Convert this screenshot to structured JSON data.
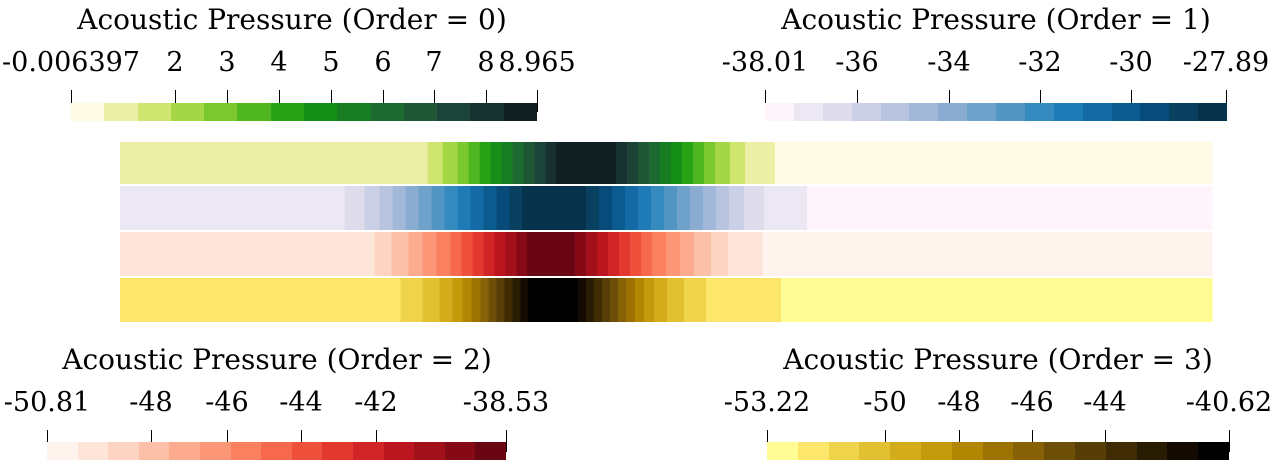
{
  "legends": [
    {
      "id": "order0",
      "title": "Acoustic Pressure (Order = 0)",
      "range": [
        -0.006397,
        8.965
      ],
      "ticks": [
        {
          "label": "-0.006397",
          "value": -0.006397
        },
        {
          "label": "2",
          "value": 2
        },
        {
          "label": "3",
          "value": 3
        },
        {
          "label": "4",
          "value": 4
        },
        {
          "label": "5",
          "value": 5
        },
        {
          "label": "6",
          "value": 6
        },
        {
          "label": "7",
          "value": 7
        },
        {
          "label": "8",
          "value": 8
        },
        {
          "label": "8.965",
          "value": 8.965
        }
      ],
      "colors": [
        "#fffbe4",
        "#ecf0a6",
        "#d0e470",
        "#a5d645",
        "#7bc72e",
        "#4fb520",
        "#29a316",
        "#168f18",
        "#167d23",
        "#1d6a30",
        "#1e5636",
        "#1c4337",
        "#173030",
        "#121f22"
      ]
    },
    {
      "id": "order1",
      "title": "Acoustic Pressure (Order = 1)",
      "range": [
        -38.01,
        -27.89
      ],
      "ticks": [
        {
          "label": "-38.01",
          "value": -38.01
        },
        {
          "label": "-36",
          "value": -36
        },
        {
          "label": "-34",
          "value": -34
        },
        {
          "label": "-32",
          "value": -32
        },
        {
          "label": "-30",
          "value": -30
        },
        {
          "label": "-27.89",
          "value": -27.89
        }
      ],
      "colors": [
        "#fdf5fb",
        "#ece8f3",
        "#dedceb",
        "#ccd0e6",
        "#b8c4e0",
        "#a2b8d9",
        "#8bacd1",
        "#6ea2ca",
        "#5195c3",
        "#358ac0",
        "#1f7bb6",
        "#136aa4",
        "#0c5b8f",
        "#064b79",
        "#093f5f",
        "#07324b"
      ]
    },
    {
      "id": "order2",
      "title": "Acoustic Pressure (Order = 2)",
      "range": [
        -50.81,
        -38.53
      ],
      "ticks": [
        {
          "label": "-50.81",
          "value": -50.81
        },
        {
          "label": "-48",
          "value": -48
        },
        {
          "label": "-46",
          "value": -46
        },
        {
          "label": "-44",
          "value": -44
        },
        {
          "label": "-42",
          "value": -42
        },
        {
          "label": "-38.53",
          "value": -38.53
        }
      ],
      "colors": [
        "#fff3ee",
        "#fee5da",
        "#fdd3c1",
        "#fcbfa7",
        "#fcab8f",
        "#fb9677",
        "#fa8060",
        "#f6694d",
        "#ef503c",
        "#e3382d",
        "#d02426",
        "#bb1620",
        "#a2101a",
        "#860916",
        "#6a0613"
      ]
    },
    {
      "id": "order3",
      "title": "Acoustic Pressure (Order = 3)",
      "range": [
        -53.22,
        -40.62
      ],
      "ticks": [
        {
          "label": "-53.22",
          "value": -53.22
        },
        {
          "label": "-50",
          "value": -50
        },
        {
          "label": "-48",
          "value": -48
        },
        {
          "label": "-46",
          "value": -46
        },
        {
          "label": "-44",
          "value": -44
        },
        {
          "label": "-40.62",
          "value": -40.62
        }
      ],
      "colors": [
        "#fffb95",
        "#fce76c",
        "#efd34a",
        "#e1c031",
        "#d3ac1c",
        "#c39a0b",
        "#b18603",
        "#9c7303",
        "#866106",
        "#6e4f07",
        "#573d06",
        "#3f2c05",
        "#281c03",
        "#130b01",
        "#000000"
      ]
    }
  ],
  "field_rows": [
    {
      "id": "order0-row",
      "legend": 0
    },
    {
      "id": "order1-row",
      "legend": 1
    },
    {
      "id": "order2-row",
      "legend": 2
    },
    {
      "id": "order3-row",
      "legend": 3
    }
  ]
}
